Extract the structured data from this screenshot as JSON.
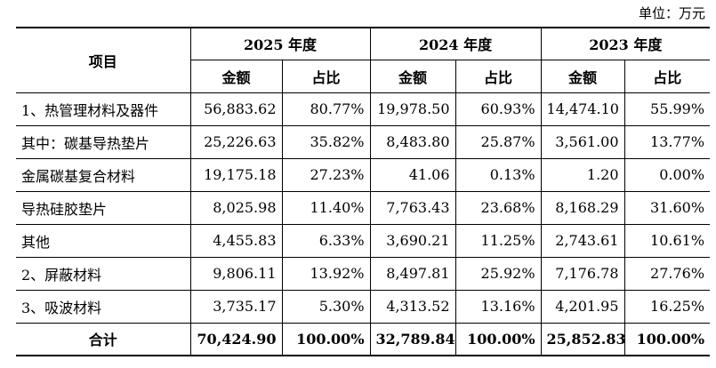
{
  "unit_label": "单位：万元",
  "header": {
    "item_label": "项目",
    "years": [
      "2025 年度",
      "2024 年度",
      "2023 年度"
    ],
    "amount_label": "金额",
    "ratio_label": "占比"
  },
  "rows": [
    {
      "label": "1、热管理材料及器件",
      "c": [
        "56,883.62",
        "80.77%",
        "19,978.50",
        "60.93%",
        "14,474.10",
        "55.99%"
      ]
    },
    {
      "label": "其中：碳基导热垫片",
      "c": [
        "25,226.63",
        "35.82%",
        "8,483.80",
        "25.87%",
        "3,561.00",
        "13.77%"
      ]
    },
    {
      "label": "金属碳基复合材料",
      "c": [
        "19,175.18",
        "27.23%",
        "41.06",
        "0.13%",
        "1.20",
        "0.00%"
      ]
    },
    {
      "label": "导热硅胶垫片",
      "c": [
        "8,025.98",
        "11.40%",
        "7,763.43",
        "23.68%",
        "8,168.29",
        "31.60%"
      ]
    },
    {
      "label": "其他",
      "c": [
        "4,455.83",
        "6.33%",
        "3,690.21",
        "11.25%",
        "2,743.61",
        "10.61%"
      ]
    },
    {
      "label": "2、屏蔽材料",
      "c": [
        "9,806.11",
        "13.92%",
        "8,497.81",
        "25.92%",
        "7,176.78",
        "27.76%"
      ]
    },
    {
      "label": "3、吸波材料",
      "c": [
        "3,735.17",
        "5.30%",
        "4,313.52",
        "13.16%",
        "4,201.95",
        "16.25%"
      ]
    }
  ],
  "total": {
    "label": "合计",
    "c": [
      "70,424.90",
      "100.00%",
      "32,789.84",
      "100.00%",
      "25,852.83",
      "100.00%"
    ]
  }
}
